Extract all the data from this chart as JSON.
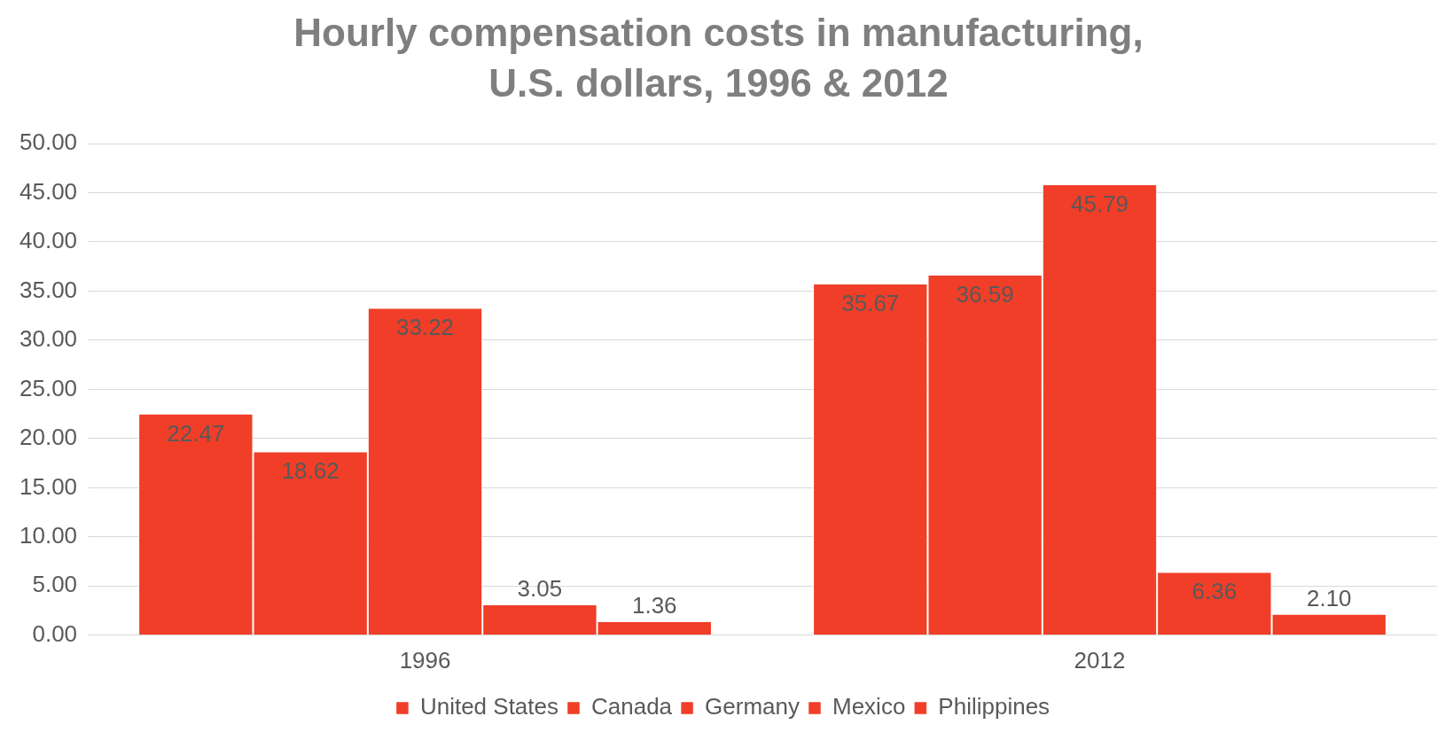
{
  "chart_data": {
    "type": "bar",
    "title": "Hourly compensation costs in manufacturing, U.S. dollars, 1996 & 2012",
    "categories": [
      "1996",
      "2012"
    ],
    "series": [
      {
        "name": "United States",
        "color": "#f03e28",
        "values": [
          22.47,
          35.67
        ],
        "value_labels": [
          "22.47",
          "35.67"
        ]
      },
      {
        "name": "Canada",
        "color": "#f03e28",
        "values": [
          18.62,
          36.59
        ],
        "value_labels": [
          "18.62",
          "36.59"
        ]
      },
      {
        "name": "Germany",
        "color": "#f03e28",
        "values": [
          33.22,
          45.79
        ],
        "value_labels": [
          "33.22",
          "45.79"
        ]
      },
      {
        "name": "Mexico",
        "color": "#f03e28",
        "values": [
          3.05,
          6.36
        ],
        "value_labels": [
          "3.05",
          "6.36"
        ]
      },
      {
        "name": "Philippines",
        "color": "#f03e28",
        "values": [
          1.36,
          2.1
        ],
        "value_labels": [
          "1.36",
          "2.10"
        ]
      }
    ],
    "ylim": [
      0,
      50
    ],
    "yticks": [
      {
        "value": 0,
        "label": "0.00"
      },
      {
        "value": 5,
        "label": "5.00"
      },
      {
        "value": 10,
        "label": "10.00"
      },
      {
        "value": 15,
        "label": "15.00"
      },
      {
        "value": 20,
        "label": "20.00"
      },
      {
        "value": 25,
        "label": "25.00"
      },
      {
        "value": 30,
        "label": "30.00"
      },
      {
        "value": 35,
        "label": "35.00"
      },
      {
        "value": 40,
        "label": "40.00"
      },
      {
        "value": 45,
        "label": "45.00"
      },
      {
        "value": 50,
        "label": "50.00"
      }
    ],
    "grid": "y",
    "legend": "bottom"
  }
}
